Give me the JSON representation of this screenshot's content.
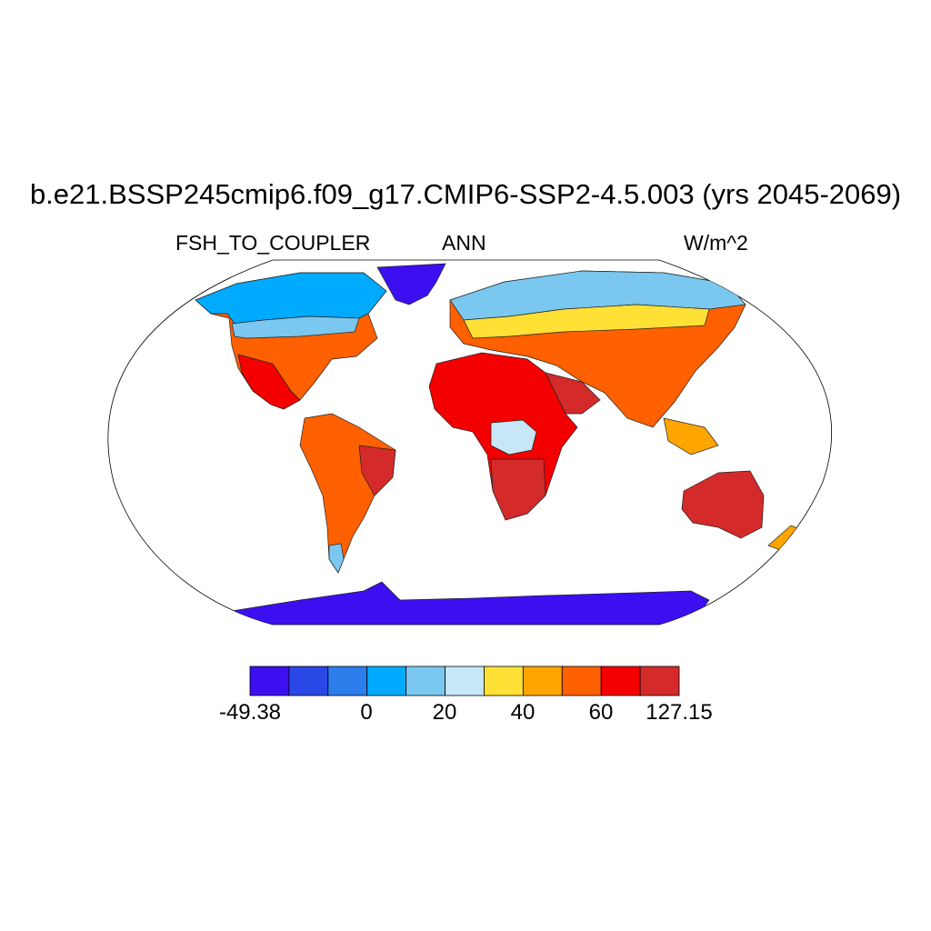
{
  "title": "b.e21.BSSP245cmip6.f09_g17.CMIP6-SSP2-4.5.003 (yrs 2045-2069)",
  "subtitle_left": "FSH_TO_COUPLER",
  "subtitle_center": "ANN",
  "subtitle_right": "W/m^2",
  "colors": {
    "ocean": "#ffffff",
    "outline": "#000000",
    "levels": [
      "#3c0ff0",
      "#2a48e6",
      "#2c7eeb",
      "#00aaff",
      "#7ac8f0",
      "#c7e6f8",
      "#ffe135",
      "#ffa500",
      "#ff6000",
      "#f50000",
      "#d42a2a"
    ]
  },
  "colorbar": {
    "labels": [
      "-49.38",
      "0",
      "20",
      "40",
      "60",
      "127.15"
    ]
  }
}
